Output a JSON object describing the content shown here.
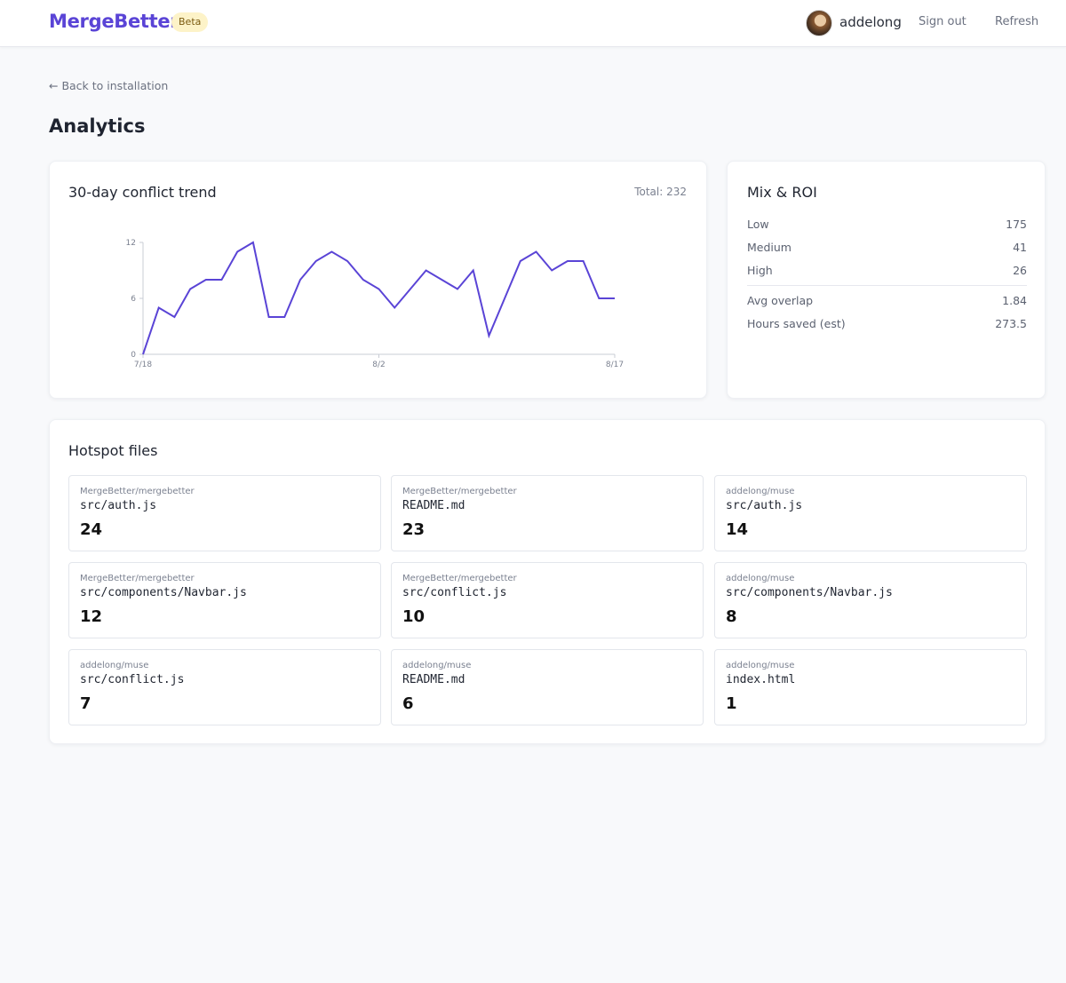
{
  "header": {
    "brand": "MergeBetter",
    "badge": "Beta",
    "username": "addelong",
    "sign_out": "Sign out",
    "refresh": "Refresh",
    "accent_color": "#5a44d6"
  },
  "breadcrumb": {
    "back_label": "← Back to installation"
  },
  "page": {
    "title": "Analytics"
  },
  "trend_card": {
    "title": "30-day conflict trend",
    "total_label": "Total: 232"
  },
  "chart_data": {
    "type": "line",
    "title": "",
    "xlabel": "",
    "ylabel": "",
    "x": [
      "7/18",
      "7/19",
      "7/20",
      "7/21",
      "7/22",
      "7/23",
      "7/24",
      "7/25",
      "7/26",
      "7/27",
      "7/28",
      "7/29",
      "7/30",
      "7/31",
      "8/1",
      "8/2",
      "8/3",
      "8/4",
      "8/5",
      "8/6",
      "8/7",
      "8/8",
      "8/9",
      "8/10",
      "8/11",
      "8/12",
      "8/13",
      "8/14",
      "8/15",
      "8/16",
      "8/17"
    ],
    "series": [
      {
        "values": [
          0,
          5,
          4,
          7,
          8,
          8,
          11,
          12,
          4,
          4,
          8,
          10,
          11,
          10,
          8,
          7,
          5,
          7,
          9,
          8,
          7,
          9,
          2,
          6,
          10,
          11,
          9,
          10,
          10,
          6,
          6
        ],
        "color": "#5a44d6"
      }
    ],
    "ylim": [
      0,
      12
    ],
    "yticks": [
      "0",
      "6",
      "12"
    ],
    "xticks": [
      "7/18",
      "8/2",
      "8/17"
    ],
    "grid": false,
    "legend": "none"
  },
  "roi": {
    "title": "Mix & ROI",
    "rows": [
      {
        "label": "Low",
        "value": "175"
      },
      {
        "label": "Medium",
        "value": "41"
      },
      {
        "label": "High",
        "value": "26"
      },
      {
        "label": "Avg overlap",
        "value": "1.84"
      },
      {
        "label": "Hours saved (est)",
        "value": "273.5"
      }
    ]
  },
  "hotspots": {
    "title": "Hotspot files",
    "files": [
      {
        "repo": "MergeBetter/mergebetter",
        "path": "src/auth.js",
        "count": "24"
      },
      {
        "repo": "MergeBetter/mergebetter",
        "path": "README.md",
        "count": "23"
      },
      {
        "repo": "addelong/muse",
        "path": "src/auth.js",
        "count": "14"
      },
      {
        "repo": "MergeBetter/mergebetter",
        "path": "src/components/Navbar.js",
        "count": "12"
      },
      {
        "repo": "MergeBetter/mergebetter",
        "path": "src/conflict.js",
        "count": "10"
      },
      {
        "repo": "addelong/muse",
        "path": "src/components/Navbar.js",
        "count": "8"
      },
      {
        "repo": "addelong/muse",
        "path": "src/conflict.js",
        "count": "7"
      },
      {
        "repo": "addelong/muse",
        "path": "README.md",
        "count": "6"
      },
      {
        "repo": "addelong/muse",
        "path": "index.html",
        "count": "1"
      }
    ]
  }
}
